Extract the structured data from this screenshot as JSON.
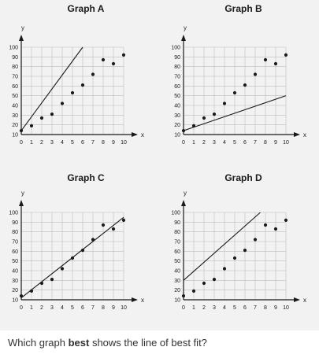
{
  "colors": {
    "panel_bg": "#f2f2f2",
    "ink": "#1a1a1a",
    "grid": "#bcbcbc",
    "text": "#333333"
  },
  "question": {
    "before": "Which graph ",
    "bold": "best",
    "after": " shows the line of best fit?"
  },
  "chart_data": [
    {
      "type": "scatter",
      "title": "Graph A",
      "xlabel": "x",
      "ylabel": "y",
      "xlim": [
        0,
        10
      ],
      "ylim": [
        10,
        100
      ],
      "x_ticks": [
        0,
        1,
        2,
        3,
        4,
        5,
        6,
        7,
        8,
        9,
        10
      ],
      "y_ticks": [
        10,
        20,
        30,
        40,
        50,
        60,
        70,
        80,
        90,
        100
      ],
      "grid": true,
      "points": {
        "x": [
          0,
          1,
          2,
          3,
          4,
          5,
          6,
          7,
          8,
          9,
          10
        ],
        "y": [
          14,
          19,
          27,
          31,
          42,
          53,
          61,
          72,
          87,
          83,
          92
        ]
      },
      "fit_line": {
        "x": [
          0,
          6
        ],
        "y": [
          14,
          100
        ]
      }
    },
    {
      "type": "scatter",
      "title": "Graph B",
      "xlabel": "x",
      "ylabel": "y",
      "xlim": [
        0,
        10
      ],
      "ylim": [
        10,
        100
      ],
      "x_ticks": [
        0,
        1,
        2,
        3,
        4,
        5,
        6,
        7,
        8,
        9,
        10
      ],
      "y_ticks": [
        10,
        20,
        30,
        40,
        50,
        60,
        70,
        80,
        90,
        100
      ],
      "grid": true,
      "points": {
        "x": [
          0,
          1,
          2,
          3,
          4,
          5,
          6,
          7,
          8,
          9,
          10
        ],
        "y": [
          14,
          19,
          27,
          31,
          42,
          53,
          61,
          72,
          87,
          83,
          92
        ]
      },
      "fit_line": {
        "x": [
          0,
          10
        ],
        "y": [
          14,
          50
        ]
      }
    },
    {
      "type": "scatter",
      "title": "Graph C",
      "xlabel": "x",
      "ylabel": "y",
      "xlim": [
        0,
        10
      ],
      "ylim": [
        10,
        100
      ],
      "x_ticks": [
        0,
        1,
        2,
        3,
        4,
        5,
        6,
        7,
        8,
        9,
        10
      ],
      "y_ticks": [
        10,
        20,
        30,
        40,
        50,
        60,
        70,
        80,
        90,
        100
      ],
      "grid": true,
      "points": {
        "x": [
          0,
          1,
          2,
          3,
          4,
          5,
          6,
          7,
          8,
          9,
          10
        ],
        "y": [
          14,
          19,
          27,
          31,
          42,
          53,
          61,
          72,
          87,
          83,
          92
        ]
      },
      "fit_line": {
        "x": [
          0,
          10
        ],
        "y": [
          12,
          95
        ]
      }
    },
    {
      "type": "scatter",
      "title": "Graph D",
      "xlabel": "x",
      "ylabel": "y",
      "xlim": [
        0,
        10
      ],
      "ylim": [
        10,
        100
      ],
      "x_ticks": [
        0,
        1,
        2,
        3,
        4,
        5,
        6,
        7,
        8,
        9,
        10
      ],
      "y_ticks": [
        10,
        20,
        30,
        40,
        50,
        60,
        70,
        80,
        90,
        100
      ],
      "grid": true,
      "points": {
        "x": [
          0,
          1,
          2,
          3,
          4,
          5,
          6,
          7,
          8,
          9,
          10
        ],
        "y": [
          14,
          19,
          27,
          31,
          42,
          53,
          61,
          72,
          87,
          83,
          92
        ]
      },
      "fit_line": {
        "x": [
          0,
          7.5
        ],
        "y": [
          30,
          100
        ]
      }
    }
  ]
}
